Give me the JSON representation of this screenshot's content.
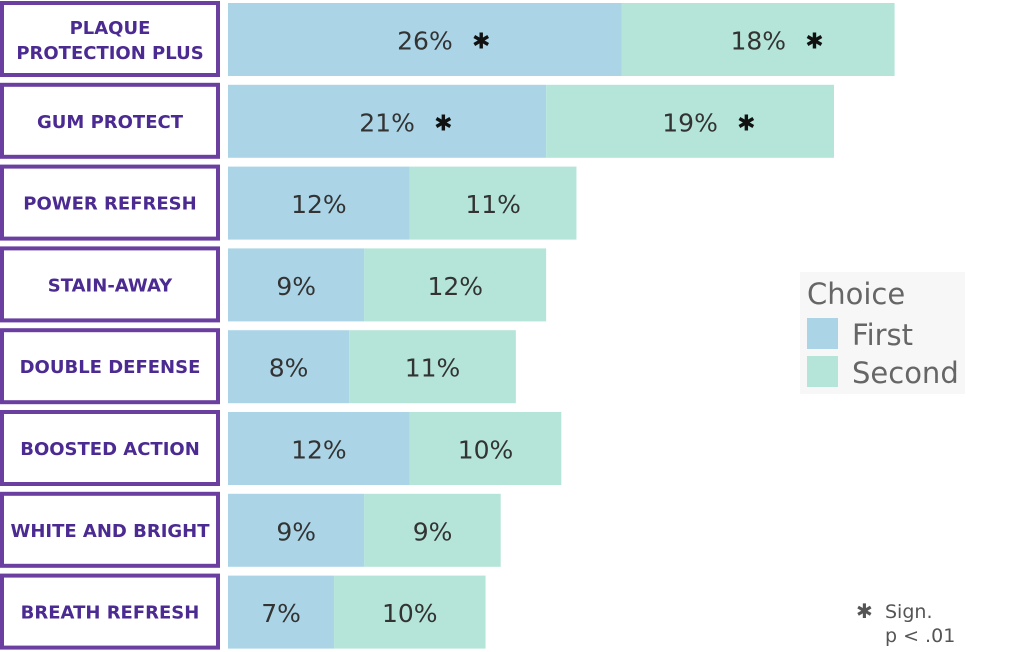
{
  "chart_data": {
    "type": "bar",
    "orientation": "horizontal",
    "stacked": true,
    "categories": [
      "PLAQUE PROTECTION PLUS",
      "GUM PROTECT",
      "POWER REFRESH",
      "STAIN-AWAY",
      "DOUBLE DEFENSE",
      "BOOSTED ACTION",
      "WHITE AND BRIGHT",
      "BREATH REFRESH"
    ],
    "series": [
      {
        "name": "First",
        "color": "#abd5e7",
        "values": [
          26,
          21,
          12,
          9,
          8,
          12,
          9,
          7
        ],
        "labels": [
          "26%",
          "21%",
          "12%",
          "9%",
          "8%",
          "12%",
          "9%",
          "7%"
        ],
        "significant": [
          true,
          true,
          false,
          false,
          false,
          false,
          false,
          false
        ]
      },
      {
        "name": "Second",
        "color": "#b5e5d9",
        "values": [
          18,
          19,
          11,
          12,
          11,
          10,
          9,
          10
        ],
        "labels": [
          "18%",
          "19%",
          "11%",
          "12%",
          "11%",
          "10%",
          "9%",
          "10%"
        ],
        "significant": [
          true,
          true,
          false,
          false,
          false,
          false,
          false,
          false
        ]
      }
    ],
    "legend": {
      "title": "Choice",
      "placement": "right"
    },
    "note": {
      "symbol": "✱",
      "lines": [
        "Sign.",
        "p < .01"
      ]
    },
    "label_box_color": "#6a3fa0",
    "label_text_color": "#4b2a91"
  }
}
